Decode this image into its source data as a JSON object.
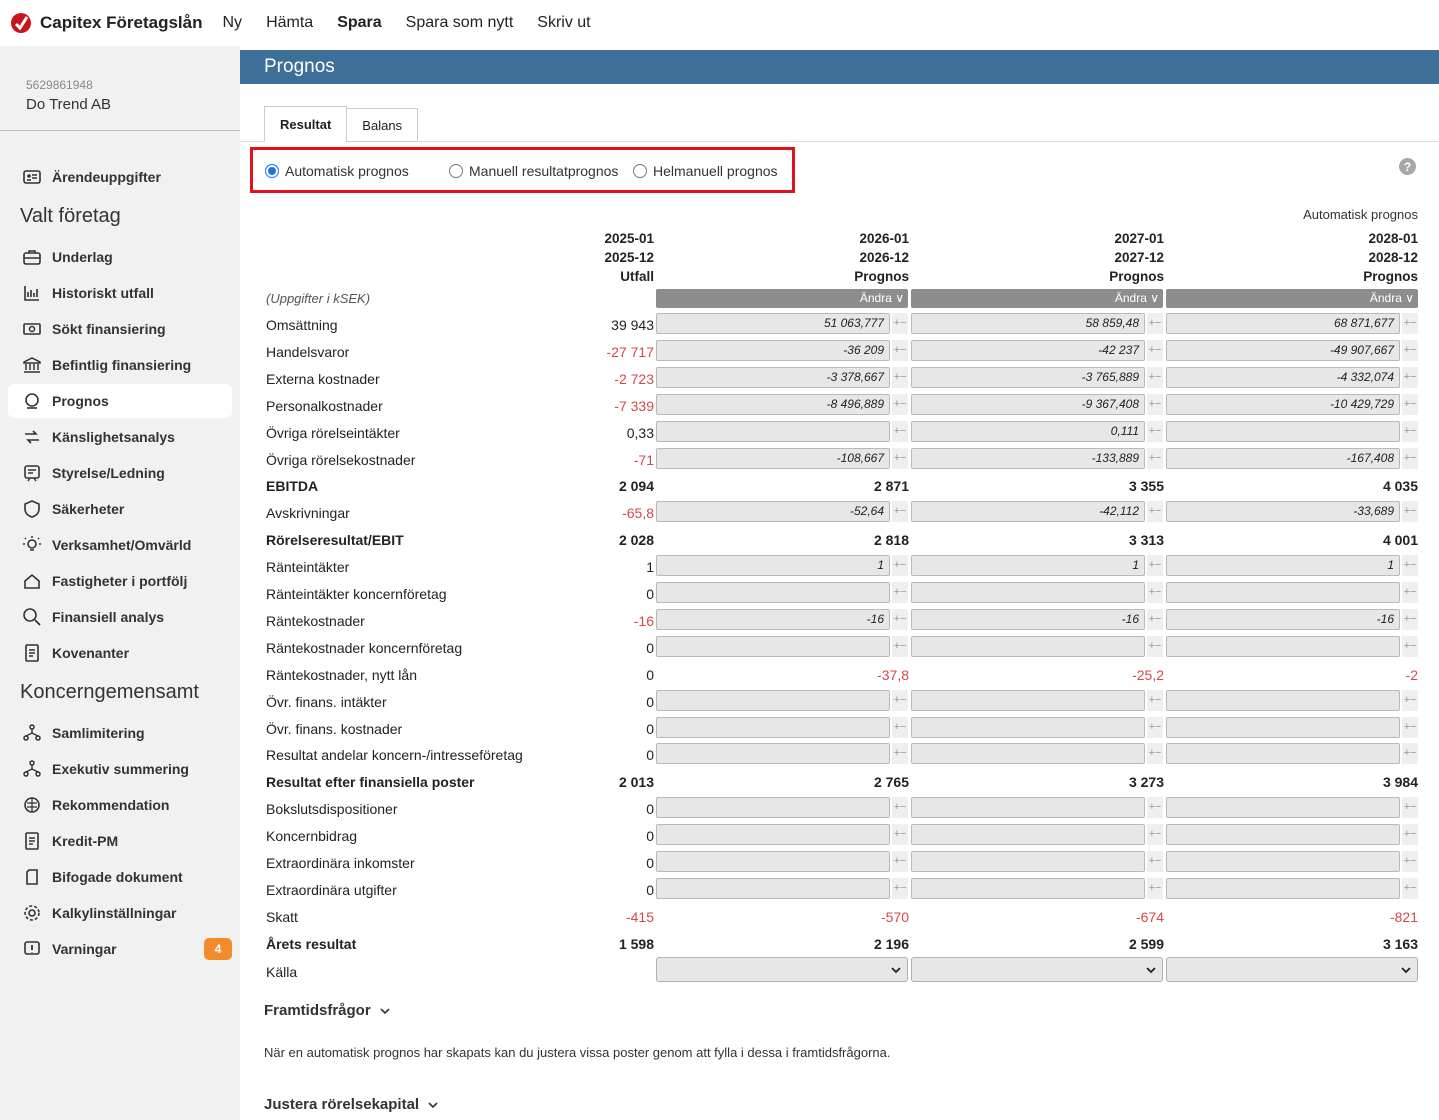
{
  "app": {
    "name": "Capitex Företagslån"
  },
  "topnav": [
    "Ny",
    "Hämta",
    "Spara",
    "Spara som nytt",
    "Skriv ut"
  ],
  "company": {
    "id": "5629861948",
    "name": "Do Trend AB"
  },
  "sidebar": {
    "top_item": "Ärendeuppgifter",
    "heading1": "Valt företag",
    "items1": [
      "Underlag",
      "Historiskt utfall",
      "Sökt finansiering",
      "Befintlig finansiering",
      "Prognos",
      "Känslighetsanalys",
      "Styrelse/Ledning",
      "Säkerheter",
      "Verksamhet/Omvärld",
      "Fastigheter i portfölj",
      "Finansiell analys",
      "Kovenanter"
    ],
    "heading2": "Koncerngemensamt",
    "items2": [
      "Samlimitering",
      "Exekutiv summering",
      "Rekommendation",
      "Kredit-PM",
      "Bifogade dokument",
      "Kalkylinställningar",
      "Varningar"
    ],
    "warnings_count": "4",
    "active": "Prognos"
  },
  "page": {
    "title": "Prognos",
    "tabs": [
      "Resultat",
      "Balans"
    ],
    "radios": [
      "Automatisk prognos",
      "Manuell resultatprognos",
      "Helmanuell prognos"
    ],
    "selected_radio": "Automatisk prognos",
    "help": "?",
    "forecast_type_label": "Automatisk prognos",
    "unit_label": "(Uppgifter i kSEK)",
    "andra_label": "Ändra",
    "columns": [
      {
        "l1": "2025-01",
        "l2": "2025-12",
        "l3": "Utfall"
      },
      {
        "l1": "2026-01",
        "l2": "2026-12",
        "l3": "Prognos"
      },
      {
        "l1": "2027-01",
        "l2": "2027-12",
        "l3": "Prognos"
      },
      {
        "l1": "2028-01",
        "l2": "2028-12",
        "l3": "Prognos"
      }
    ],
    "source_label": "Källa",
    "future_questions_title": "Framtidsfrågor",
    "future_questions_text": "När en automatisk prognos har skapats kan du justera vissa poster genom att fylla i dessa i framtidsfrågorna.",
    "working_capital_title": "Justera rörelsekapital"
  },
  "rows": [
    {
      "label": "Omsättning",
      "actual": "39 943",
      "f": [
        "51 063,777",
        "58 859,48",
        "68 871,677"
      ],
      "type": "input"
    },
    {
      "label": "Handelsvaror",
      "actual": "-27 717",
      "f": [
        "-36 209",
        "-42 237",
        "-49 907,667"
      ],
      "type": "input"
    },
    {
      "label": "Externa kostnader",
      "actual": "-2 723",
      "f": [
        "-3 378,667",
        "-3 765,889",
        "-4 332,074"
      ],
      "type": "input"
    },
    {
      "label": "Personalkostnader",
      "actual": "-7 339",
      "f": [
        "-8 496,889",
        "-9 367,408",
        "-10 429,729"
      ],
      "type": "input"
    },
    {
      "label": "Övriga rörelseintäkter",
      "actual": "0,33",
      "f": [
        "",
        "0,111",
        ""
      ],
      "type": "input"
    },
    {
      "label": "Övriga rörelsekostnader",
      "actual": "-71",
      "f": [
        "-108,667",
        "-133,889",
        "-167,408"
      ],
      "type": "input"
    },
    {
      "label": "EBITDA",
      "actual": "2 094",
      "f": [
        "2 871",
        "3 355",
        "4 035"
      ],
      "type": "sum"
    },
    {
      "label": "Avskrivningar",
      "actual": "-65,8",
      "f": [
        "-52,64",
        "-42,112",
        "-33,689"
      ],
      "type": "input"
    },
    {
      "label": "Rörelseresultat/EBIT",
      "actual": "2 028",
      "f": [
        "2 818",
        "3 313",
        "4 001"
      ],
      "type": "sum"
    },
    {
      "label": "Ränteintäkter",
      "actual": "1",
      "f": [
        "1",
        "1",
        "1"
      ],
      "type": "input"
    },
    {
      "label": "Ränteintäkter koncernföretag",
      "actual": "0",
      "f": [
        "",
        "",
        ""
      ],
      "type": "input"
    },
    {
      "label": "Räntekostnader",
      "actual": "-16",
      "f": [
        "-16",
        "-16",
        "-16"
      ],
      "type": "input"
    },
    {
      "label": "Räntekostnader koncernföretag",
      "actual": "0",
      "f": [
        "",
        "",
        ""
      ],
      "type": "input"
    },
    {
      "label": "Räntekostnader, nytt lån",
      "actual": "0",
      "f": [
        "-37,8",
        "-25,2",
        "-2"
      ],
      "type": "calc"
    },
    {
      "label": "Övr. finans. intäkter",
      "actual": "0",
      "f": [
        "",
        "",
        ""
      ],
      "type": "input"
    },
    {
      "label": "Övr. finans. kostnader",
      "actual": "0",
      "f": [
        "",
        "",
        ""
      ],
      "type": "input"
    },
    {
      "label": "Resultat andelar koncern-/intresseföretag",
      "actual": "0",
      "f": [
        "",
        "",
        ""
      ],
      "type": "input"
    },
    {
      "label": "Resultat efter finansiella poster",
      "actual": "2 013",
      "f": [
        "2 765",
        "3 273",
        "3 984"
      ],
      "type": "sum"
    },
    {
      "label": "Bokslutsdispositioner",
      "actual": "0",
      "f": [
        "",
        "",
        ""
      ],
      "type": "input"
    },
    {
      "label": "Koncernbidrag",
      "actual": "0",
      "f": [
        "",
        "",
        ""
      ],
      "type": "input"
    },
    {
      "label": "Extraordinära inkomster",
      "actual": "0",
      "f": [
        "",
        "",
        ""
      ],
      "type": "input"
    },
    {
      "label": "Extraordinära utgifter",
      "actual": "0",
      "f": [
        "",
        "",
        ""
      ],
      "type": "input"
    },
    {
      "label": "Skatt",
      "actual": "-415",
      "f": [
        "-570",
        "-674",
        "-821"
      ],
      "type": "calc"
    },
    {
      "label": "Årets resultat",
      "actual": "1 598",
      "f": [
        "2 196",
        "2 599",
        "3 163"
      ],
      "type": "sum"
    }
  ],
  "colors": {
    "header": "#3e6f98",
    "negative": "#d04a4a",
    "highlight_border": "#e1121b",
    "badge": "#f08c2c"
  }
}
